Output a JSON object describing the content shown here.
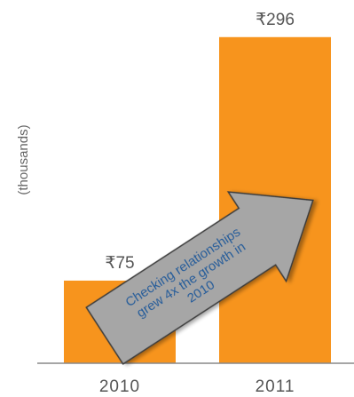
{
  "chart_data": {
    "type": "bar",
    "categories": [
      "2010",
      "2011"
    ],
    "values": [
      75,
      296
    ],
    "value_labels": [
      "₹75",
      "₹296"
    ],
    "ylabel": "(thousands)",
    "ylim": [
      0,
      320
    ],
    "grid": false,
    "legend": "none",
    "bar_color": "#f7941d",
    "annotation": {
      "lines": [
        "Checking relationships",
        "grew 4x the growth in",
        "2010"
      ],
      "color": "#1a5a9a",
      "fill": "#a6a6a6"
    }
  }
}
